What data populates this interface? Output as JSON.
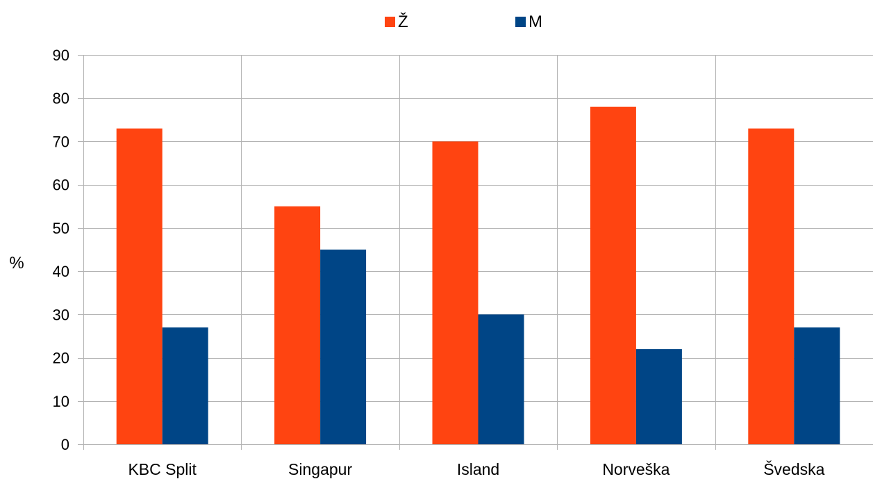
{
  "chart_data": {
    "type": "bar",
    "title": "",
    "xlabel": "",
    "ylabel": "%",
    "categories": [
      "KBC Split",
      "Singapur",
      "Island",
      "Norveška",
      "Švedska"
    ],
    "series": [
      {
        "name": "Ž",
        "color": "#ff4411",
        "values": [
          73,
          55,
          70,
          78,
          73
        ]
      },
      {
        "name": "M",
        "color": "#004586",
        "values": [
          27,
          45,
          30,
          22,
          27
        ]
      }
    ],
    "ylim": [
      0,
      90
    ],
    "yticks": [
      0,
      10,
      20,
      30,
      40,
      50,
      60,
      70,
      80,
      90
    ],
    "grid": true,
    "legend_position": "top-center"
  }
}
